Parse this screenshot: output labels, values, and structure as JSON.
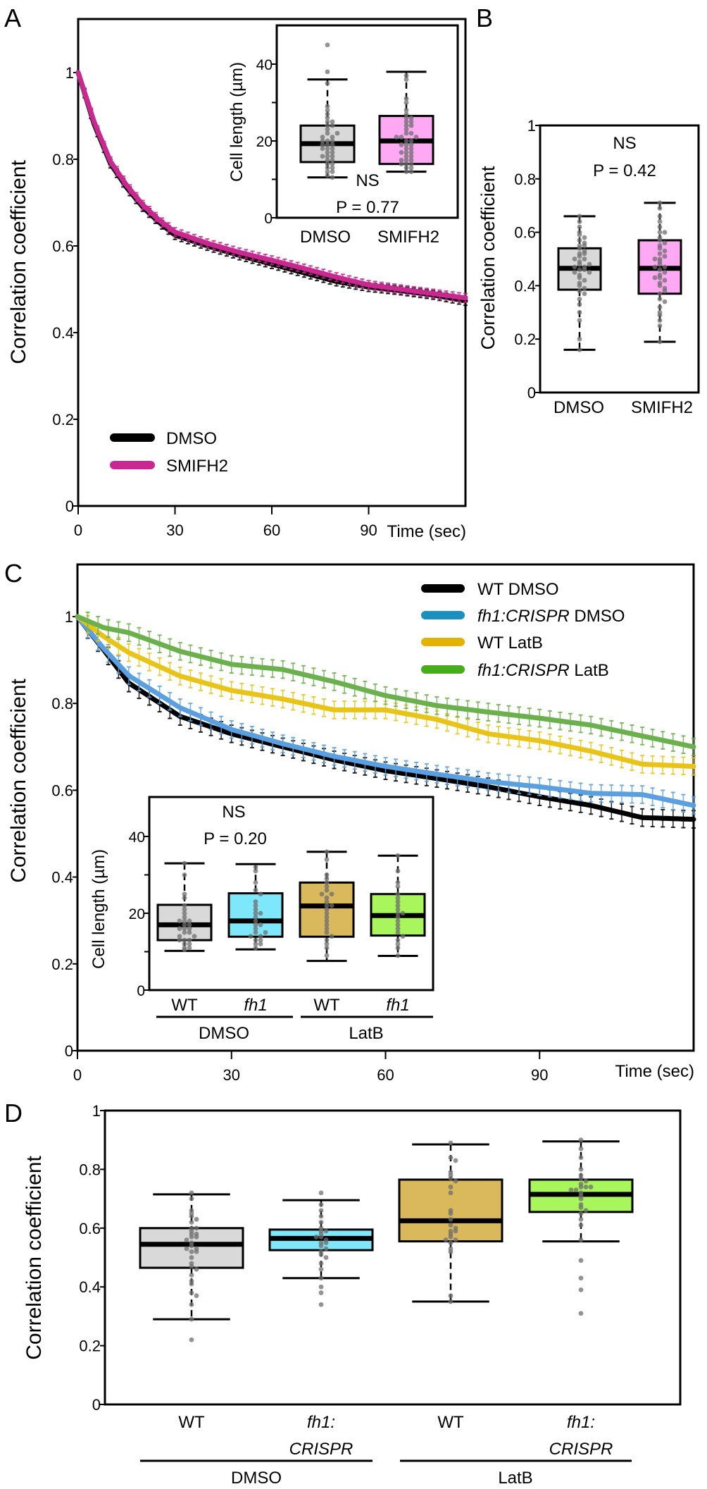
{
  "panel_labels": {
    "a": "A",
    "b": "B",
    "c": "C",
    "d": "D"
  },
  "chart_data": [
    {
      "id": "A",
      "type": "line",
      "xlabel": "Time (sec)",
      "ylabel": "Correlation coefficient",
      "xlim": [
        0,
        120
      ],
      "ylim": [
        0,
        1
      ],
      "xticks": [
        0,
        30,
        60,
        90
      ],
      "xtick_labels": [
        "0",
        "30",
        "60",
        "90"
      ],
      "yticks": [
        0,
        0.2,
        0.4,
        0.6,
        0.8,
        1
      ],
      "ytick_labels": [
        "0",
        "0.2",
        "0.4",
        "0.6",
        "0.8",
        "1"
      ],
      "error": 0.01,
      "legend": "bottom-left",
      "series": [
        {
          "name": "DMSO",
          "color": "#000000",
          "x": [
            0,
            5,
            10,
            15,
            20,
            25,
            30,
            40,
            50,
            60,
            70,
            80,
            90,
            100,
            110,
            120
          ],
          "y": [
            1,
            0.88,
            0.79,
            0.735,
            0.69,
            0.655,
            0.625,
            0.6,
            0.578,
            0.558,
            0.538,
            0.518,
            0.505,
            0.497,
            0.487,
            0.473
          ]
        },
        {
          "name": "SMIFH2",
          "color": "#c8288f",
          "x": [
            0,
            5,
            10,
            15,
            20,
            25,
            30,
            40,
            50,
            60,
            70,
            80,
            90,
            100,
            110,
            120
          ],
          "y": [
            1,
            0.885,
            0.795,
            0.74,
            0.695,
            0.66,
            0.632,
            0.606,
            0.585,
            0.567,
            0.548,
            0.528,
            0.51,
            0.5,
            0.49,
            0.48
          ]
        }
      ]
    },
    {
      "id": "A-inset",
      "type": "box",
      "ylabel": "Cell length (µm)",
      "ylim": [
        0,
        50
      ],
      "yticks": [
        0,
        10,
        20,
        30,
        40
      ],
      "ytick_labels": [
        "0",
        "",
        "20",
        "",
        "40"
      ],
      "categories": [
        "DMSO",
        "SMIFH2"
      ],
      "annotation": {
        "ns": "NS",
        "p": "P = 0.77"
      },
      "boxes": [
        {
          "low": 10.5,
          "q1": 14.5,
          "median": 19.3,
          "q3": 24,
          "high": 36,
          "fill": "#d9d9d9",
          "points": [
            45,
            38,
            35,
            29,
            28,
            27,
            26,
            25,
            24,
            23,
            22,
            21,
            21,
            20,
            20,
            19,
            19,
            18,
            18,
            17,
            17,
            16,
            16,
            15,
            15,
            14,
            14,
            13,
            13,
            12,
            12,
            11,
            10.5,
            22,
            24,
            25,
            19,
            18,
            16,
            20
          ]
        },
        {
          "low": 12,
          "q1": 14,
          "median": 20,
          "q3": 26.5,
          "high": 38,
          "fill": "#ffa8f3",
          "points": [
            37,
            36,
            31,
            30,
            28,
            27,
            26,
            25,
            25,
            24,
            23,
            22,
            22,
            21,
            21,
            20,
            20,
            19,
            19,
            18,
            18,
            17,
            17,
            16,
            16,
            15,
            15,
            14,
            14,
            13,
            13,
            12,
            12,
            24,
            19,
            21,
            26,
            17,
            15,
            14
          ]
        }
      ]
    },
    {
      "id": "B",
      "type": "box",
      "ylabel": "Correlation coefficient",
      "ylim": [
        0,
        1
      ],
      "yticks": [
        0,
        0.2,
        0.4,
        0.6,
        0.8,
        1
      ],
      "ytick_labels": [
        "0",
        "0.2",
        "0.4",
        "0.6",
        "0.8",
        "1"
      ],
      "categories": [
        "DMSO",
        "SMIFH2"
      ],
      "annotation": {
        "ns": "NS",
        "p": "P = 0.42"
      },
      "boxes": [
        {
          "low": 0.16,
          "q1": 0.385,
          "median": 0.465,
          "q3": 0.54,
          "high": 0.66,
          "fill": "#d9d9d9",
          "points": [
            0.66,
            0.64,
            0.62,
            0.6,
            0.59,
            0.58,
            0.57,
            0.56,
            0.55,
            0.54,
            0.53,
            0.52,
            0.51,
            0.5,
            0.49,
            0.48,
            0.47,
            0.47,
            0.46,
            0.46,
            0.45,
            0.44,
            0.43,
            0.42,
            0.41,
            0.4,
            0.39,
            0.38,
            0.37,
            0.35,
            0.33,
            0.3,
            0.27,
            0.2,
            0.16,
            0.55,
            0.5,
            0.45,
            0.48,
            0.52
          ]
        },
        {
          "low": 0.19,
          "q1": 0.37,
          "median": 0.465,
          "q3": 0.57,
          "high": 0.71,
          "fill": "#ffa8f3",
          "points": [
            0.71,
            0.69,
            0.66,
            0.64,
            0.62,
            0.6,
            0.58,
            0.57,
            0.55,
            0.54,
            0.53,
            0.52,
            0.5,
            0.49,
            0.48,
            0.47,
            0.46,
            0.45,
            0.44,
            0.43,
            0.42,
            0.41,
            0.4,
            0.39,
            0.37,
            0.35,
            0.34,
            0.32,
            0.3,
            0.29,
            0.27,
            0.25,
            0.19,
            0.56,
            0.51,
            0.47,
            0.43,
            0.38,
            0.6,
            0.5
          ]
        }
      ]
    },
    {
      "id": "C",
      "type": "line",
      "xlabel": "Time (sec)",
      "ylabel": "Correlation coefficient",
      "xlim": [
        0,
        120
      ],
      "ylim": [
        0,
        1
      ],
      "xticks": [
        0,
        30,
        60,
        90
      ],
      "xtick_labels": [
        "0",
        "30",
        "60",
        "90"
      ],
      "yticks": [
        0,
        0.2,
        0.4,
        0.6,
        0.8,
        1
      ],
      "ytick_labels": [
        "0",
        "0.2",
        "0.4",
        "0.6",
        "0.8",
        "1"
      ],
      "error": 0.02,
      "legend": "top-right",
      "series": [
        {
          "genotype": "WT",
          "genotype_italic": false,
          "treatment": "DMSO",
          "color": "#000000",
          "legend_color": "#000000",
          "x": [
            0,
            5,
            10,
            20,
            30,
            40,
            50,
            60,
            70,
            80,
            90,
            100,
            110,
            120
          ],
          "y": [
            1,
            0.925,
            0.847,
            0.77,
            0.73,
            0.7,
            0.67,
            0.645,
            0.627,
            0.608,
            0.585,
            0.565,
            0.537,
            0.533
          ]
        },
        {
          "genotype": "fh1:CRISPR",
          "genotype_italic": true,
          "treatment": "DMSO",
          "color": "#5aa0e0",
          "legend_color": "#1b8fbf",
          "x": [
            0,
            5,
            10,
            20,
            30,
            40,
            50,
            60,
            70,
            80,
            90,
            100,
            110,
            120
          ],
          "y": [
            1,
            0.928,
            0.864,
            0.79,
            0.74,
            0.707,
            0.678,
            0.655,
            0.637,
            0.62,
            0.608,
            0.593,
            0.59,
            0.565
          ]
        },
        {
          "genotype": "WT",
          "genotype_italic": false,
          "treatment": "LatB",
          "color": "#e8c419",
          "legend_color": "#e0b400",
          "x": [
            0,
            5,
            10,
            20,
            30,
            40,
            50,
            60,
            70,
            80,
            90,
            100,
            110,
            120
          ],
          "y": [
            1,
            0.955,
            0.917,
            0.863,
            0.83,
            0.81,
            0.785,
            0.785,
            0.763,
            0.73,
            0.714,
            0.69,
            0.66,
            0.655
          ]
        },
        {
          "genotype": "fh1:CRISPR",
          "genotype_italic": true,
          "treatment": "LatB",
          "color": "#6ab04c",
          "legend_color": "#47ad1a",
          "x": [
            0,
            5,
            10,
            20,
            30,
            40,
            50,
            60,
            70,
            80,
            90,
            100,
            110,
            120
          ],
          "y": [
            1,
            0.975,
            0.963,
            0.92,
            0.89,
            0.878,
            0.85,
            0.818,
            0.795,
            0.78,
            0.766,
            0.75,
            0.725,
            0.7
          ]
        }
      ]
    },
    {
      "id": "C-inset",
      "type": "box",
      "ylabel": "Cell length (µm)",
      "ylim": [
        0,
        50
      ],
      "yticks": [
        0,
        10,
        20,
        30,
        40
      ],
      "ytick_labels": [
        "0",
        "",
        "20",
        "",
        "40"
      ],
      "categories": [
        "WT",
        "fh1",
        "WT",
        "fh1"
      ],
      "categories_italic": [
        false,
        true,
        false,
        true
      ],
      "groups": [
        "DMSO",
        "LatB"
      ],
      "annotation": {
        "ns": "NS",
        "p": "P = 0.20"
      },
      "boxes": [
        {
          "low": 10.2,
          "q1": 13,
          "median": 17,
          "q3": 22.2,
          "high": 33,
          "fill": "#d9d9d9",
          "points": [
            33,
            30,
            25,
            24,
            22,
            21,
            20,
            19,
            18,
            18,
            17,
            17,
            16,
            16,
            15,
            15,
            14,
            14,
            13,
            13,
            12,
            12,
            11,
            11,
            10.5,
            16,
            18,
            13
          ]
        },
        {
          "low": 10.6,
          "q1": 13.9,
          "median": 18,
          "q3": 25.2,
          "high": 32.8,
          "fill": "#7fe7fa",
          "points": [
            32,
            31,
            28,
            26,
            25,
            23,
            22,
            21,
            20,
            19,
            18,
            17,
            16,
            15,
            14,
            14,
            13,
            13,
            12,
            12,
            11,
            17,
            20,
            15
          ]
        },
        {
          "low": 7.6,
          "q1": 13.9,
          "median": 21.9,
          "q3": 28,
          "high": 36,
          "fill": "#d9b95b",
          "points": [
            36,
            34,
            30,
            29,
            27,
            26,
            25,
            24,
            23,
            22,
            21,
            20,
            19,
            18,
            17,
            16,
            15,
            14,
            13,
            12,
            11,
            9,
            25,
            22,
            28
          ]
        },
        {
          "low": 8.9,
          "q1": 14.2,
          "median": 19.4,
          "q3": 25,
          "high": 35,
          "fill": "#a8f55c",
          "points": [
            35,
            31,
            28,
            27,
            25,
            24,
            22,
            21,
            20,
            19,
            18,
            17,
            16,
            15,
            14,
            13,
            12,
            11,
            9,
            20,
            23
          ]
        }
      ]
    },
    {
      "id": "D",
      "type": "box",
      "ylabel": "Correlation coefficient",
      "ylim": [
        0,
        1
      ],
      "yticks": [
        0,
        0.2,
        0.4,
        0.6,
        0.8,
        1
      ],
      "ytick_labels": [
        "0",
        "0.2",
        "0.4",
        "0.6",
        "0.8",
        "1"
      ],
      "categories": [
        [
          "WT"
        ],
        [
          "fh1:",
          "CRISPR"
        ],
        [
          "WT"
        ],
        [
          "fh1:",
          "CRISPR"
        ]
      ],
      "categories_italic": [
        false,
        true,
        false,
        true
      ],
      "groups": [
        "DMSO",
        "LatB"
      ],
      "boxes": [
        {
          "low": 0.29,
          "q1": 0.465,
          "median": 0.545,
          "q3": 0.6,
          "high": 0.715,
          "fill": "#d9d9d9",
          "points": [
            0.72,
            0.7,
            0.66,
            0.65,
            0.64,
            0.63,
            0.62,
            0.6,
            0.59,
            0.58,
            0.57,
            0.57,
            0.56,
            0.55,
            0.54,
            0.53,
            0.52,
            0.52,
            0.5,
            0.48,
            0.47,
            0.46,
            0.44,
            0.42,
            0.41,
            0.38,
            0.37,
            0.34,
            0.29,
            0.22,
            0.58,
            0.6,
            0.53
          ]
        },
        {
          "low": 0.43,
          "q1": 0.525,
          "median": 0.565,
          "q3": 0.595,
          "high": 0.695,
          "fill": "#7fe7fa",
          "points": [
            0.72,
            0.68,
            0.66,
            0.64,
            0.62,
            0.6,
            0.59,
            0.58,
            0.57,
            0.56,
            0.55,
            0.55,
            0.54,
            0.53,
            0.52,
            0.51,
            0.5,
            0.48,
            0.46,
            0.43,
            0.4,
            0.38,
            0.34,
            0.57,
            0.59
          ]
        },
        {
          "low": 0.35,
          "q1": 0.555,
          "median": 0.625,
          "q3": 0.765,
          "high": 0.885,
          "fill": "#d9b95b",
          "points": [
            0.89,
            0.84,
            0.83,
            0.79,
            0.78,
            0.77,
            0.76,
            0.74,
            0.72,
            0.66,
            0.65,
            0.63,
            0.61,
            0.6,
            0.59,
            0.58,
            0.57,
            0.56,
            0.55,
            0.53,
            0.52,
            0.37,
            0.35,
            0.59,
            0.56
          ]
        },
        {
          "low": 0.555,
          "q1": 0.655,
          "median": 0.715,
          "q3": 0.765,
          "high": 0.895,
          "fill": "#a8f55c",
          "points": [
            0.9,
            0.87,
            0.84,
            0.8,
            0.78,
            0.77,
            0.76,
            0.75,
            0.74,
            0.74,
            0.73,
            0.72,
            0.71,
            0.7,
            0.68,
            0.67,
            0.66,
            0.65,
            0.63,
            0.61,
            0.56,
            0.49,
            0.43,
            0.39,
            0.31,
            0.74,
            0.73
          ]
        }
      ]
    }
  ]
}
